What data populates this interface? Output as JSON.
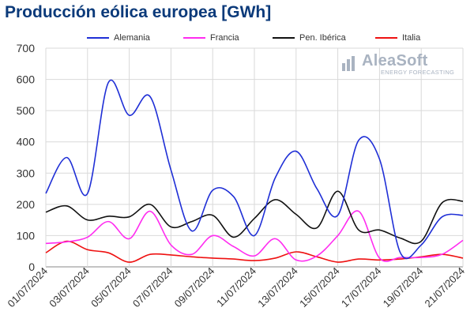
{
  "page": {
    "title": "Producción eólica europea [GWh]"
  },
  "branding": {
    "logo_text": "AleaSoft",
    "logo_subtitle": "ENERGY FORECASTING",
    "logo_icon": "aleasoft-logo-icon"
  },
  "chart_data": {
    "type": "line",
    "title": "Producción eólica europea [GWh]",
    "xlabel": "",
    "ylabel": "",
    "ylim": [
      0,
      700
    ],
    "yticks": [
      0,
      100,
      200,
      300,
      400,
      500,
      600,
      700
    ],
    "grid": "horizontal",
    "legend_position": "top",
    "x": [
      "01/07/2024",
      "02/07/2024",
      "03/07/2024",
      "04/07/2024",
      "05/07/2024",
      "06/07/2024",
      "07/07/2024",
      "08/07/2024",
      "09/07/2024",
      "10/07/2024",
      "11/07/2024",
      "12/07/2024",
      "13/07/2024",
      "14/07/2024",
      "15/07/2024",
      "16/07/2024",
      "17/07/2024",
      "18/07/2024",
      "19/07/2024",
      "20/07/2024",
      "21/07/2024"
    ],
    "xtick_labels": [
      "01/07/2024",
      "03/07/2024",
      "05/07/2024",
      "07/07/2024",
      "09/07/2024",
      "11/07/2024",
      "13/07/2024",
      "15/07/2024",
      "17/07/2024",
      "19/07/2024",
      "21/07/2024"
    ],
    "series": [
      {
        "name": "Alemania",
        "color": "#1f2fd6",
        "values": [
          235,
          350,
          235,
          590,
          485,
          545,
          310,
          115,
          245,
          225,
          100,
          285,
          370,
          250,
          165,
          405,
          345,
          45,
          70,
          160,
          165
        ]
      },
      {
        "name": "Francia",
        "color": "#ff2cf0",
        "values": [
          75,
          80,
          95,
          145,
          90,
          178,
          70,
          40,
          100,
          65,
          35,
          90,
          22,
          35,
          100,
          178,
          28,
          30,
          30,
          40,
          85
        ]
      },
      {
        "name": "Pen. Ibérica",
        "color": "#111111",
        "values": [
          175,
          195,
          150,
          162,
          160,
          200,
          128,
          145,
          165,
          95,
          155,
          215,
          168,
          125,
          242,
          118,
          118,
          92,
          82,
          205,
          210
        ]
      },
      {
        "name": "Italia",
        "color": "#ee1111",
        "values": [
          45,
          82,
          55,
          45,
          15,
          40,
          38,
          32,
          28,
          25,
          20,
          28,
          48,
          32,
          15,
          25,
          22,
          25,
          32,
          40,
          28
        ]
      }
    ]
  }
}
